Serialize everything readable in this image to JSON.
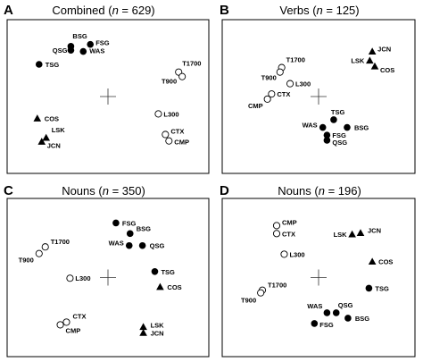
{
  "chart_data": [
    {
      "type": "scatter",
      "panel_letter": "A",
      "title_prefix": "Combined (",
      "title_var": "n",
      "title_suffix": " = 629)",
      "marker_key": {
        "circle": "filled/open",
        "triangle": "filled"
      },
      "center_cross": [
        0,
        0
      ],
      "xlim": [
        -1,
        1
      ],
      "ylim": [
        -1,
        1
      ],
      "points": [
        {
          "label": "BSG",
          "x": -0.42,
          "y": 0.78,
          "marker": "circle-filled"
        },
        {
          "label": "QSG",
          "x": -0.42,
          "y": 0.72,
          "marker": "circle-filled"
        },
        {
          "label": "FSG",
          "x": -0.2,
          "y": 0.81,
          "marker": "circle-filled"
        },
        {
          "label": "WAS",
          "x": -0.28,
          "y": 0.7,
          "marker": "circle-filled"
        },
        {
          "label": "TSG",
          "x": -0.78,
          "y": 0.5,
          "marker": "circle-filled"
        },
        {
          "label": "T1700",
          "x": 0.8,
          "y": 0.38,
          "marker": "circle-open"
        },
        {
          "label": "T900",
          "x": 0.84,
          "y": 0.31,
          "marker": "circle-open"
        },
        {
          "label": "L300",
          "x": 0.57,
          "y": -0.27,
          "marker": "circle-open"
        },
        {
          "label": "COS",
          "x": -0.8,
          "y": -0.34,
          "marker": "triangle-filled"
        },
        {
          "label": "CTX",
          "x": 0.65,
          "y": -0.59,
          "marker": "circle-open"
        },
        {
          "label": "CMP",
          "x": 0.69,
          "y": -0.69,
          "marker": "circle-open"
        },
        {
          "label": "LSK",
          "x": -0.7,
          "y": -0.64,
          "marker": "triangle-filled"
        },
        {
          "label": "JCN",
          "x": -0.75,
          "y": -0.7,
          "marker": "triangle-filled"
        }
      ]
    },
    {
      "type": "scatter",
      "panel_letter": "B",
      "title_prefix": "Verbs (",
      "title_var": "n",
      "title_suffix": " = 125)",
      "center_cross": [
        0,
        0
      ],
      "xlim": [
        -1,
        1
      ],
      "ylim": [
        -1,
        1
      ],
      "points": [
        {
          "label": "T1700",
          "x": -0.44,
          "y": 0.45,
          "marker": "circle-open"
        },
        {
          "label": "T900",
          "x": -0.46,
          "y": 0.38,
          "marker": "circle-open"
        },
        {
          "label": "L300",
          "x": -0.34,
          "y": 0.2,
          "marker": "circle-open"
        },
        {
          "label": "CTX",
          "x": -0.56,
          "y": 0.04,
          "marker": "circle-open"
        },
        {
          "label": "CMP",
          "x": -0.61,
          "y": -0.04,
          "marker": "circle-open"
        },
        {
          "label": "JCN",
          "x": 0.64,
          "y": 0.7,
          "marker": "triangle-filled"
        },
        {
          "label": "LSK",
          "x": 0.61,
          "y": 0.56,
          "marker": "triangle-filled"
        },
        {
          "label": "COS",
          "x": 0.67,
          "y": 0.47,
          "marker": "triangle-filled"
        },
        {
          "label": "TSG",
          "x": 0.18,
          "y": -0.36,
          "marker": "circle-filled"
        },
        {
          "label": "WAS",
          "x": 0.05,
          "y": -0.48,
          "marker": "circle-filled"
        },
        {
          "label": "BSG",
          "x": 0.34,
          "y": -0.48,
          "marker": "circle-filled"
        },
        {
          "label": "FSG",
          "x": 0.1,
          "y": -0.6,
          "marker": "circle-filled"
        },
        {
          "label": "QSG",
          "x": 0.1,
          "y": -0.68,
          "marker": "circle-filled"
        }
      ]
    },
    {
      "type": "scatter",
      "panel_letter": "C",
      "title_prefix": "Nouns (",
      "title_var": "n",
      "title_suffix": " = 350)",
      "center_cross": [
        0,
        0
      ],
      "xlim": [
        -1,
        1
      ],
      "ylim": [
        -1,
        1
      ],
      "points": [
        {
          "label": "FSG",
          "x": 0.09,
          "y": 0.82,
          "marker": "circle-filled"
        },
        {
          "label": "BSG",
          "x": 0.25,
          "y": 0.66,
          "marker": "circle-filled"
        },
        {
          "label": "WAS",
          "x": 0.24,
          "y": 0.48,
          "marker": "circle-filled"
        },
        {
          "label": "QSG",
          "x": 0.39,
          "y": 0.48,
          "marker": "circle-filled"
        },
        {
          "label": "T1700",
          "x": -0.71,
          "y": 0.46,
          "marker": "circle-open"
        },
        {
          "label": "T900",
          "x": -0.78,
          "y": 0.36,
          "marker": "circle-open"
        },
        {
          "label": "TSG",
          "x": 0.53,
          "y": 0.09,
          "marker": "circle-filled"
        },
        {
          "label": "L300",
          "x": -0.43,
          "y": -0.01,
          "marker": "circle-open"
        },
        {
          "label": "COS",
          "x": 0.59,
          "y": -0.14,
          "marker": "triangle-filled"
        },
        {
          "label": "CTX",
          "x": -0.47,
          "y": -0.67,
          "marker": "circle-open"
        },
        {
          "label": "CMP",
          "x": -0.54,
          "y": -0.71,
          "marker": "circle-open"
        },
        {
          "label": "LSK",
          "x": 0.4,
          "y": -0.74,
          "marker": "triangle-filled"
        },
        {
          "label": "JCN",
          "x": 0.4,
          "y": -0.83,
          "marker": "triangle-filled"
        }
      ]
    },
    {
      "type": "scatter",
      "panel_letter": "D",
      "title_prefix": "Nouns (",
      "title_var": "n",
      "title_suffix": " = 196)",
      "center_cross": [
        0,
        0
      ],
      "xlim": [
        -1,
        1
      ],
      "ylim": [
        -1,
        1
      ],
      "points": [
        {
          "label": "CMP",
          "x": -0.5,
          "y": 0.78,
          "marker": "circle-open"
        },
        {
          "label": "CTX",
          "x": -0.5,
          "y": 0.66,
          "marker": "circle-open"
        },
        {
          "label": "LSK",
          "x": 0.4,
          "y": 0.65,
          "marker": "triangle-filled"
        },
        {
          "label": "JCN",
          "x": 0.5,
          "y": 0.67,
          "marker": "triangle-filled"
        },
        {
          "label": "L300",
          "x": -0.41,
          "y": 0.35,
          "marker": "circle-open"
        },
        {
          "label": "COS",
          "x": 0.64,
          "y": 0.24,
          "marker": "triangle-filled"
        },
        {
          "label": "T1700",
          "x": -0.67,
          "y": -0.19,
          "marker": "circle-open"
        },
        {
          "label": "T900",
          "x": -0.69,
          "y": -0.23,
          "marker": "circle-open"
        },
        {
          "label": "TSG",
          "x": 0.6,
          "y": -0.16,
          "marker": "circle-filled"
        },
        {
          "label": "WAS",
          "x": 0.1,
          "y": -0.53,
          "marker": "circle-filled"
        },
        {
          "label": "QSG",
          "x": 0.21,
          "y": -0.53,
          "marker": "circle-filled"
        },
        {
          "label": "BSG",
          "x": 0.35,
          "y": -0.61,
          "marker": "circle-filled"
        },
        {
          "label": "FSG",
          "x": -0.05,
          "y": -0.69,
          "marker": "circle-filled"
        }
      ]
    }
  ],
  "colors": {
    "marker": "#000000",
    "open_fill": "#ffffff",
    "frame": "#000000",
    "cross": "#333333"
  }
}
